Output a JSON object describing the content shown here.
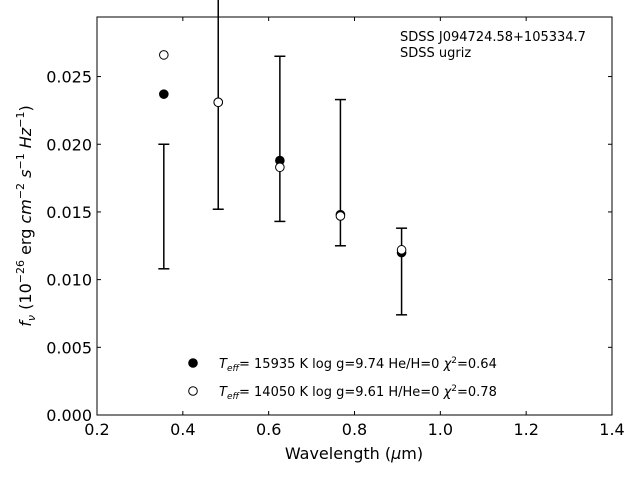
{
  "chart_data": {
    "type": "scatter",
    "title": "",
    "annotation": [
      "SDSS J094724.58+105334.7",
      "SDSS ugriz"
    ],
    "xlabel": "Wavelength (μm)",
    "ylabel": "f_ν (10^-26 erg cm^-2 s^-1 Hz^-1)",
    "xlim": [
      0.2,
      1.4
    ],
    "ylim": [
      0.0,
      0.0294
    ],
    "xticks": [
      0.2,
      0.4,
      0.6,
      0.8,
      1.0,
      1.2,
      1.4
    ],
    "xtick_labels": [
      "0.2",
      "0.4",
      "0.6",
      "0.8",
      "1.0",
      "1.2",
      "1.4"
    ],
    "yticks": [
      0.0,
      0.005,
      0.01,
      0.015,
      0.02,
      0.025
    ],
    "ytick_labels": [
      "0.000",
      "0.005",
      "0.010",
      "0.015",
      "0.020",
      "0.025"
    ],
    "grid": false,
    "legend_position": "bottom-center",
    "observed": {
      "x": [
        0.3557,
        0.4825,
        0.6261,
        0.7672,
        0.9097
      ],
      "y": [
        0.0154,
        0.0232,
        0.0204,
        0.0179,
        0.0106
      ],
      "yerr": [
        0.0046,
        0.008,
        0.0061,
        0.0054,
        0.0032
      ]
    },
    "series": [
      {
        "name": "T_eff= 15935 K  log g=9.74  He/H=0  χ²=0.64",
        "legend_text": {
          "teff_value": "= 15935 K  log g=9.74  He/H=0  ",
          "chi2_value": "=0.64"
        },
        "marker": "filled-circle",
        "x": [
          0.3557,
          0.4825,
          0.6261,
          0.7672,
          0.9097
        ],
        "y": [
          0.0237,
          0.0231,
          0.0188,
          0.0148,
          0.012
        ]
      },
      {
        "name": "T_eff= 14050 K  log g=9.61  H/He=0  χ²=0.78",
        "legend_text": {
          "teff_value": "= 14050 K  log g=9.61  H/He=0  ",
          "chi2_value": "=0.78"
        },
        "marker": "open-circle",
        "x": [
          0.3557,
          0.4825,
          0.6261,
          0.7672,
          0.9097
        ],
        "y": [
          0.0266,
          0.0231,
          0.0183,
          0.0147,
          0.0122
        ]
      }
    ]
  }
}
